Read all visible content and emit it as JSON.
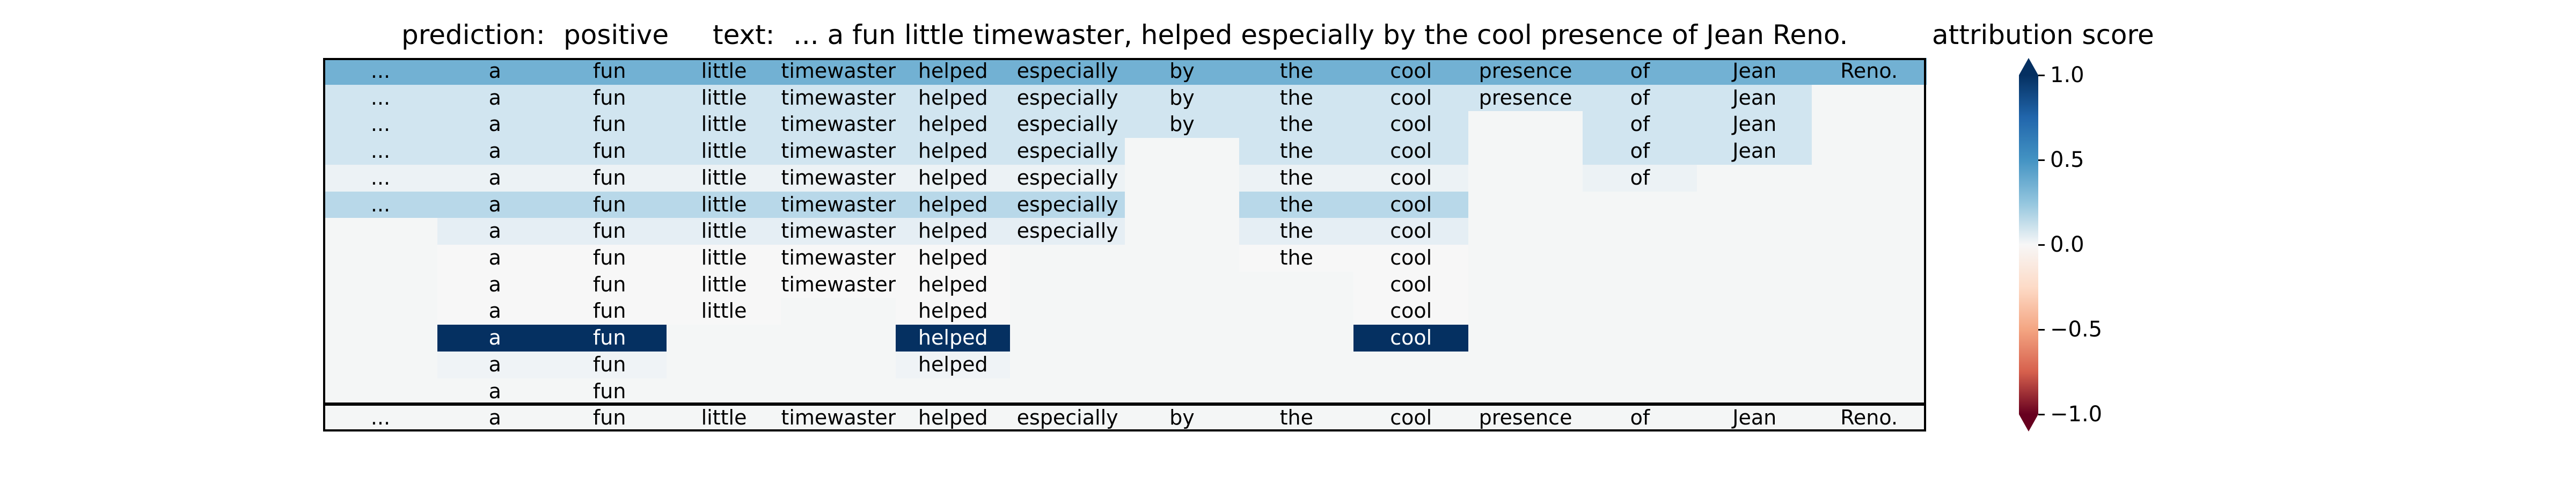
{
  "header": {
    "prediction_label": "prediction:",
    "prediction_value": "positive",
    "text_label": "text:",
    "text_value": "... a fun little timewaster, helped especially by the cool presence of Jean Reno.",
    "colorbar_title": "attribution score"
  },
  "colors": {
    "frame": "#000000",
    "empty_cell": "#f4f6f6",
    "colormap": "RdBu"
  },
  "colorbar": {
    "min": -1.0,
    "max": 1.0,
    "ticks": [
      {
        "value": 1.0,
        "label": "1.0"
      },
      {
        "value": 0.5,
        "label": "0.5"
      },
      {
        "value": 0.0,
        "label": "0.0"
      },
      {
        "value": -0.5,
        "label": "−0.5"
      },
      {
        "value": -1.0,
        "label": "−1.0"
      }
    ]
  },
  "chart_data": {
    "type": "heatmap",
    "tokens": [
      "...",
      "a",
      "fun",
      "little",
      "timewaster,",
      "helped",
      "especially",
      "by",
      "the",
      "cool",
      "presence",
      "of",
      "Jean",
      "Reno."
    ],
    "rows": [
      {
        "present": [
          1,
          1,
          1,
          1,
          1,
          1,
          1,
          1,
          1,
          1,
          1,
          1,
          1,
          1
        ],
        "score": 0.6
      },
      {
        "present": [
          1,
          1,
          1,
          1,
          1,
          1,
          1,
          1,
          1,
          1,
          1,
          1,
          1,
          0
        ],
        "score": 0.25
      },
      {
        "present": [
          1,
          1,
          1,
          1,
          1,
          1,
          1,
          1,
          1,
          1,
          0,
          1,
          1,
          0
        ],
        "score": 0.25
      },
      {
        "present": [
          1,
          1,
          1,
          1,
          1,
          1,
          1,
          0,
          1,
          1,
          0,
          1,
          1,
          0
        ],
        "score": 0.25
      },
      {
        "present": [
          1,
          1,
          1,
          1,
          1,
          1,
          1,
          0,
          1,
          1,
          0,
          1,
          0,
          0
        ],
        "score": 0.07
      },
      {
        "present": [
          1,
          1,
          1,
          1,
          1,
          1,
          1,
          0,
          1,
          1,
          0,
          0,
          0,
          0
        ],
        "score": 0.35
      },
      {
        "present": [
          0,
          1,
          1,
          1,
          1,
          1,
          1,
          0,
          1,
          1,
          0,
          0,
          0,
          0
        ],
        "score": 0.12
      },
      {
        "present": [
          0,
          1,
          1,
          1,
          1,
          1,
          0,
          0,
          1,
          1,
          0,
          0,
          0,
          0
        ],
        "score": 0.0
      },
      {
        "present": [
          0,
          1,
          1,
          1,
          1,
          1,
          0,
          0,
          0,
          1,
          0,
          0,
          0,
          0
        ],
        "score": 0.0
      },
      {
        "present": [
          0,
          1,
          1,
          1,
          0,
          1,
          0,
          0,
          0,
          1,
          0,
          0,
          0,
          0
        ],
        "score": 0.0
      },
      {
        "present": [
          0,
          1,
          1,
          0,
          0,
          1,
          0,
          0,
          0,
          1,
          0,
          0,
          0,
          0
        ],
        "score": 1.0
      },
      {
        "present": [
          0,
          1,
          1,
          0,
          0,
          1,
          0,
          0,
          0,
          0,
          0,
          0,
          0,
          0
        ],
        "score": 0.05
      },
      {
        "present": [
          0,
          1,
          1,
          0,
          0,
          0,
          0,
          0,
          0,
          0,
          0,
          0,
          0,
          0
        ],
        "score": 0.02
      }
    ],
    "reference_row": [
      "...",
      "a",
      "fun",
      "little",
      "timewaster,",
      "helped",
      "especially",
      "by",
      "the",
      "cool",
      "presence",
      "of",
      "Jean",
      "Reno."
    ],
    "title": "prediction:  positive     text:  ... a fun little timewaster, helped especially by the cool presence of Jean Reno.",
    "colorbar_label": "attribution score",
    "vlim": [
      -1.0,
      1.0
    ]
  }
}
